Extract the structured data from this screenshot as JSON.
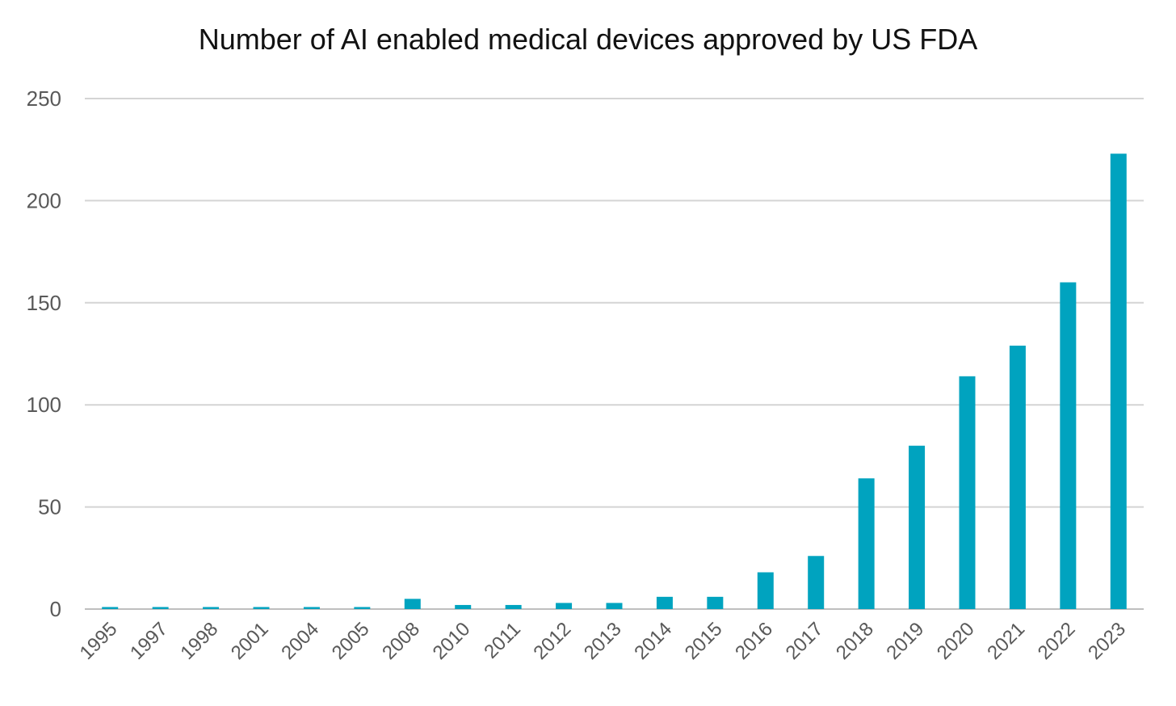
{
  "chart_data": {
    "type": "bar",
    "title": "Number of AI enabled medical devices approved by US FDA",
    "categories": [
      "1995",
      "1997",
      "1998",
      "2001",
      "2004",
      "2005",
      "2008",
      "2010",
      "2011",
      "2012",
      "2013",
      "2014",
      "2015",
      "2016",
      "2017",
      "2018",
      "2019",
      "2020",
      "2021",
      "2022",
      "2023"
    ],
    "values": [
      1,
      1,
      1,
      1,
      1,
      1,
      5,
      2,
      2,
      3,
      3,
      6,
      6,
      18,
      26,
      64,
      80,
      114,
      129,
      160,
      223
    ],
    "xlabel": "",
    "ylabel": "",
    "ylim": [
      0,
      250
    ],
    "yticks": [
      "0",
      "50",
      "100",
      "150",
      "200",
      "250"
    ],
    "grid": true,
    "legend": "none",
    "colors": {
      "bar": "#00A3BF",
      "grid": "#D4D4D4",
      "axis": "#BFBFBF",
      "tick_text": "#595959",
      "title_text": "#111111"
    }
  }
}
